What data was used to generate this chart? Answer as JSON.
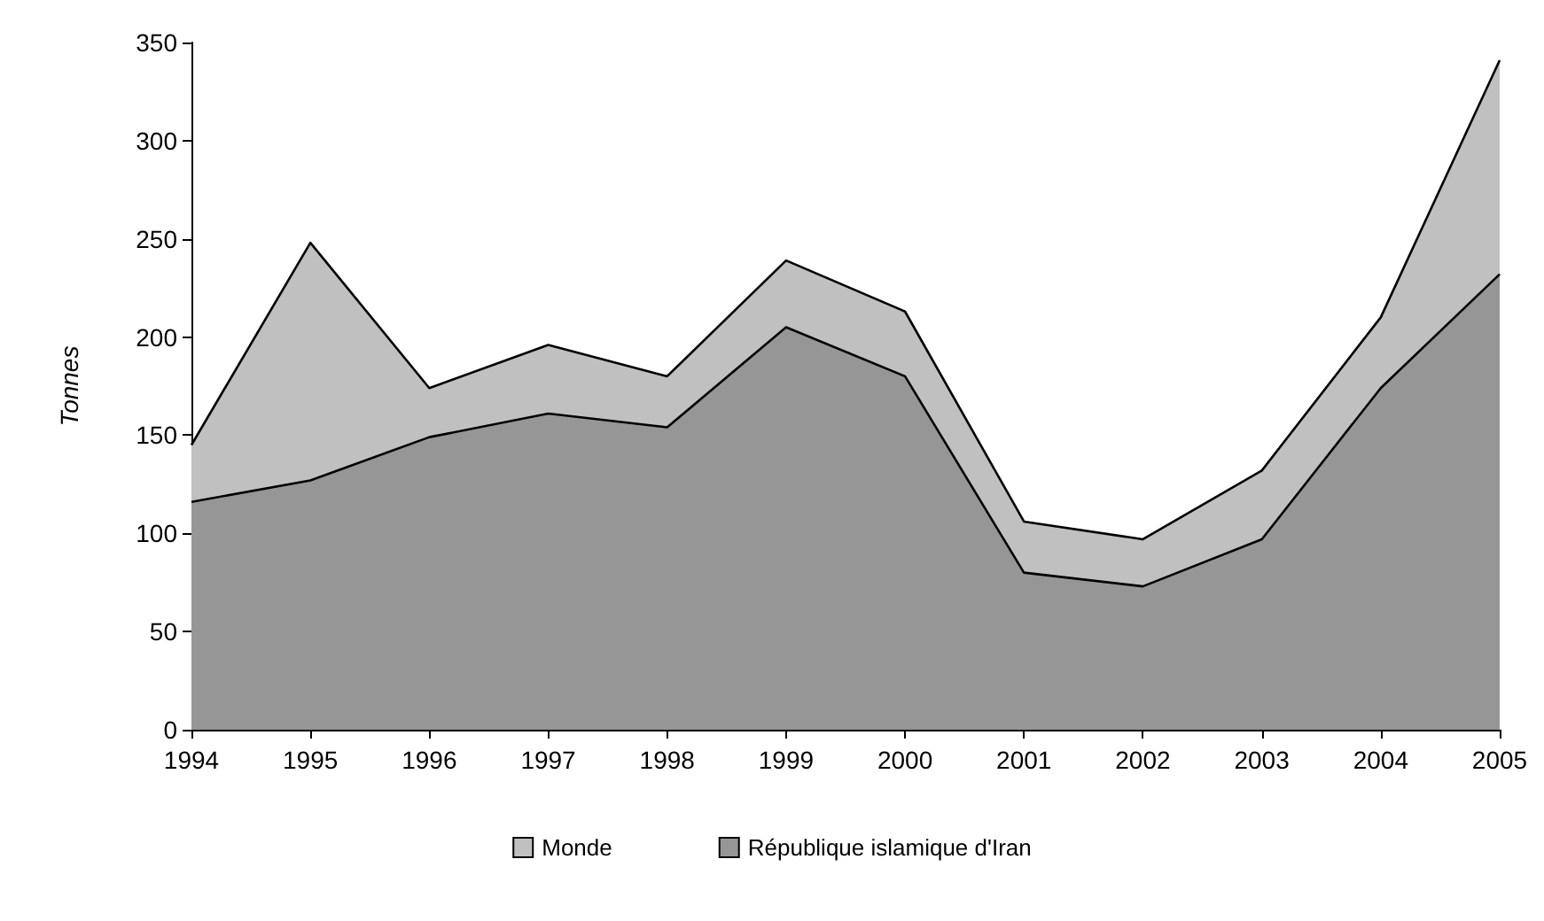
{
  "chart_data": {
    "type": "area",
    "ylabel": "Tonnes",
    "categories": [
      "1994",
      "1995",
      "1996",
      "1997",
      "1998",
      "1999",
      "2000",
      "2001",
      "2002",
      "2003",
      "2004",
      "2005"
    ],
    "series": [
      {
        "name": "Monde",
        "color": "#c0c0c0",
        "values": [
          145,
          248,
          174,
          196,
          180,
          239,
          213,
          106,
          97,
          132,
          210,
          341
        ]
      },
      {
        "name": "République islamique d'Iran",
        "color": "#969696",
        "values": [
          116,
          127,
          149,
          161,
          154,
          205,
          180,
          80,
          73,
          97,
          174,
          232
        ]
      }
    ],
    "ylim": [
      0,
      350
    ],
    "yticks": [
      0,
      50,
      100,
      150,
      200,
      250,
      300,
      350
    ],
    "grid": false,
    "legend": "bottom",
    "marker": "none",
    "line_style": "solid"
  }
}
